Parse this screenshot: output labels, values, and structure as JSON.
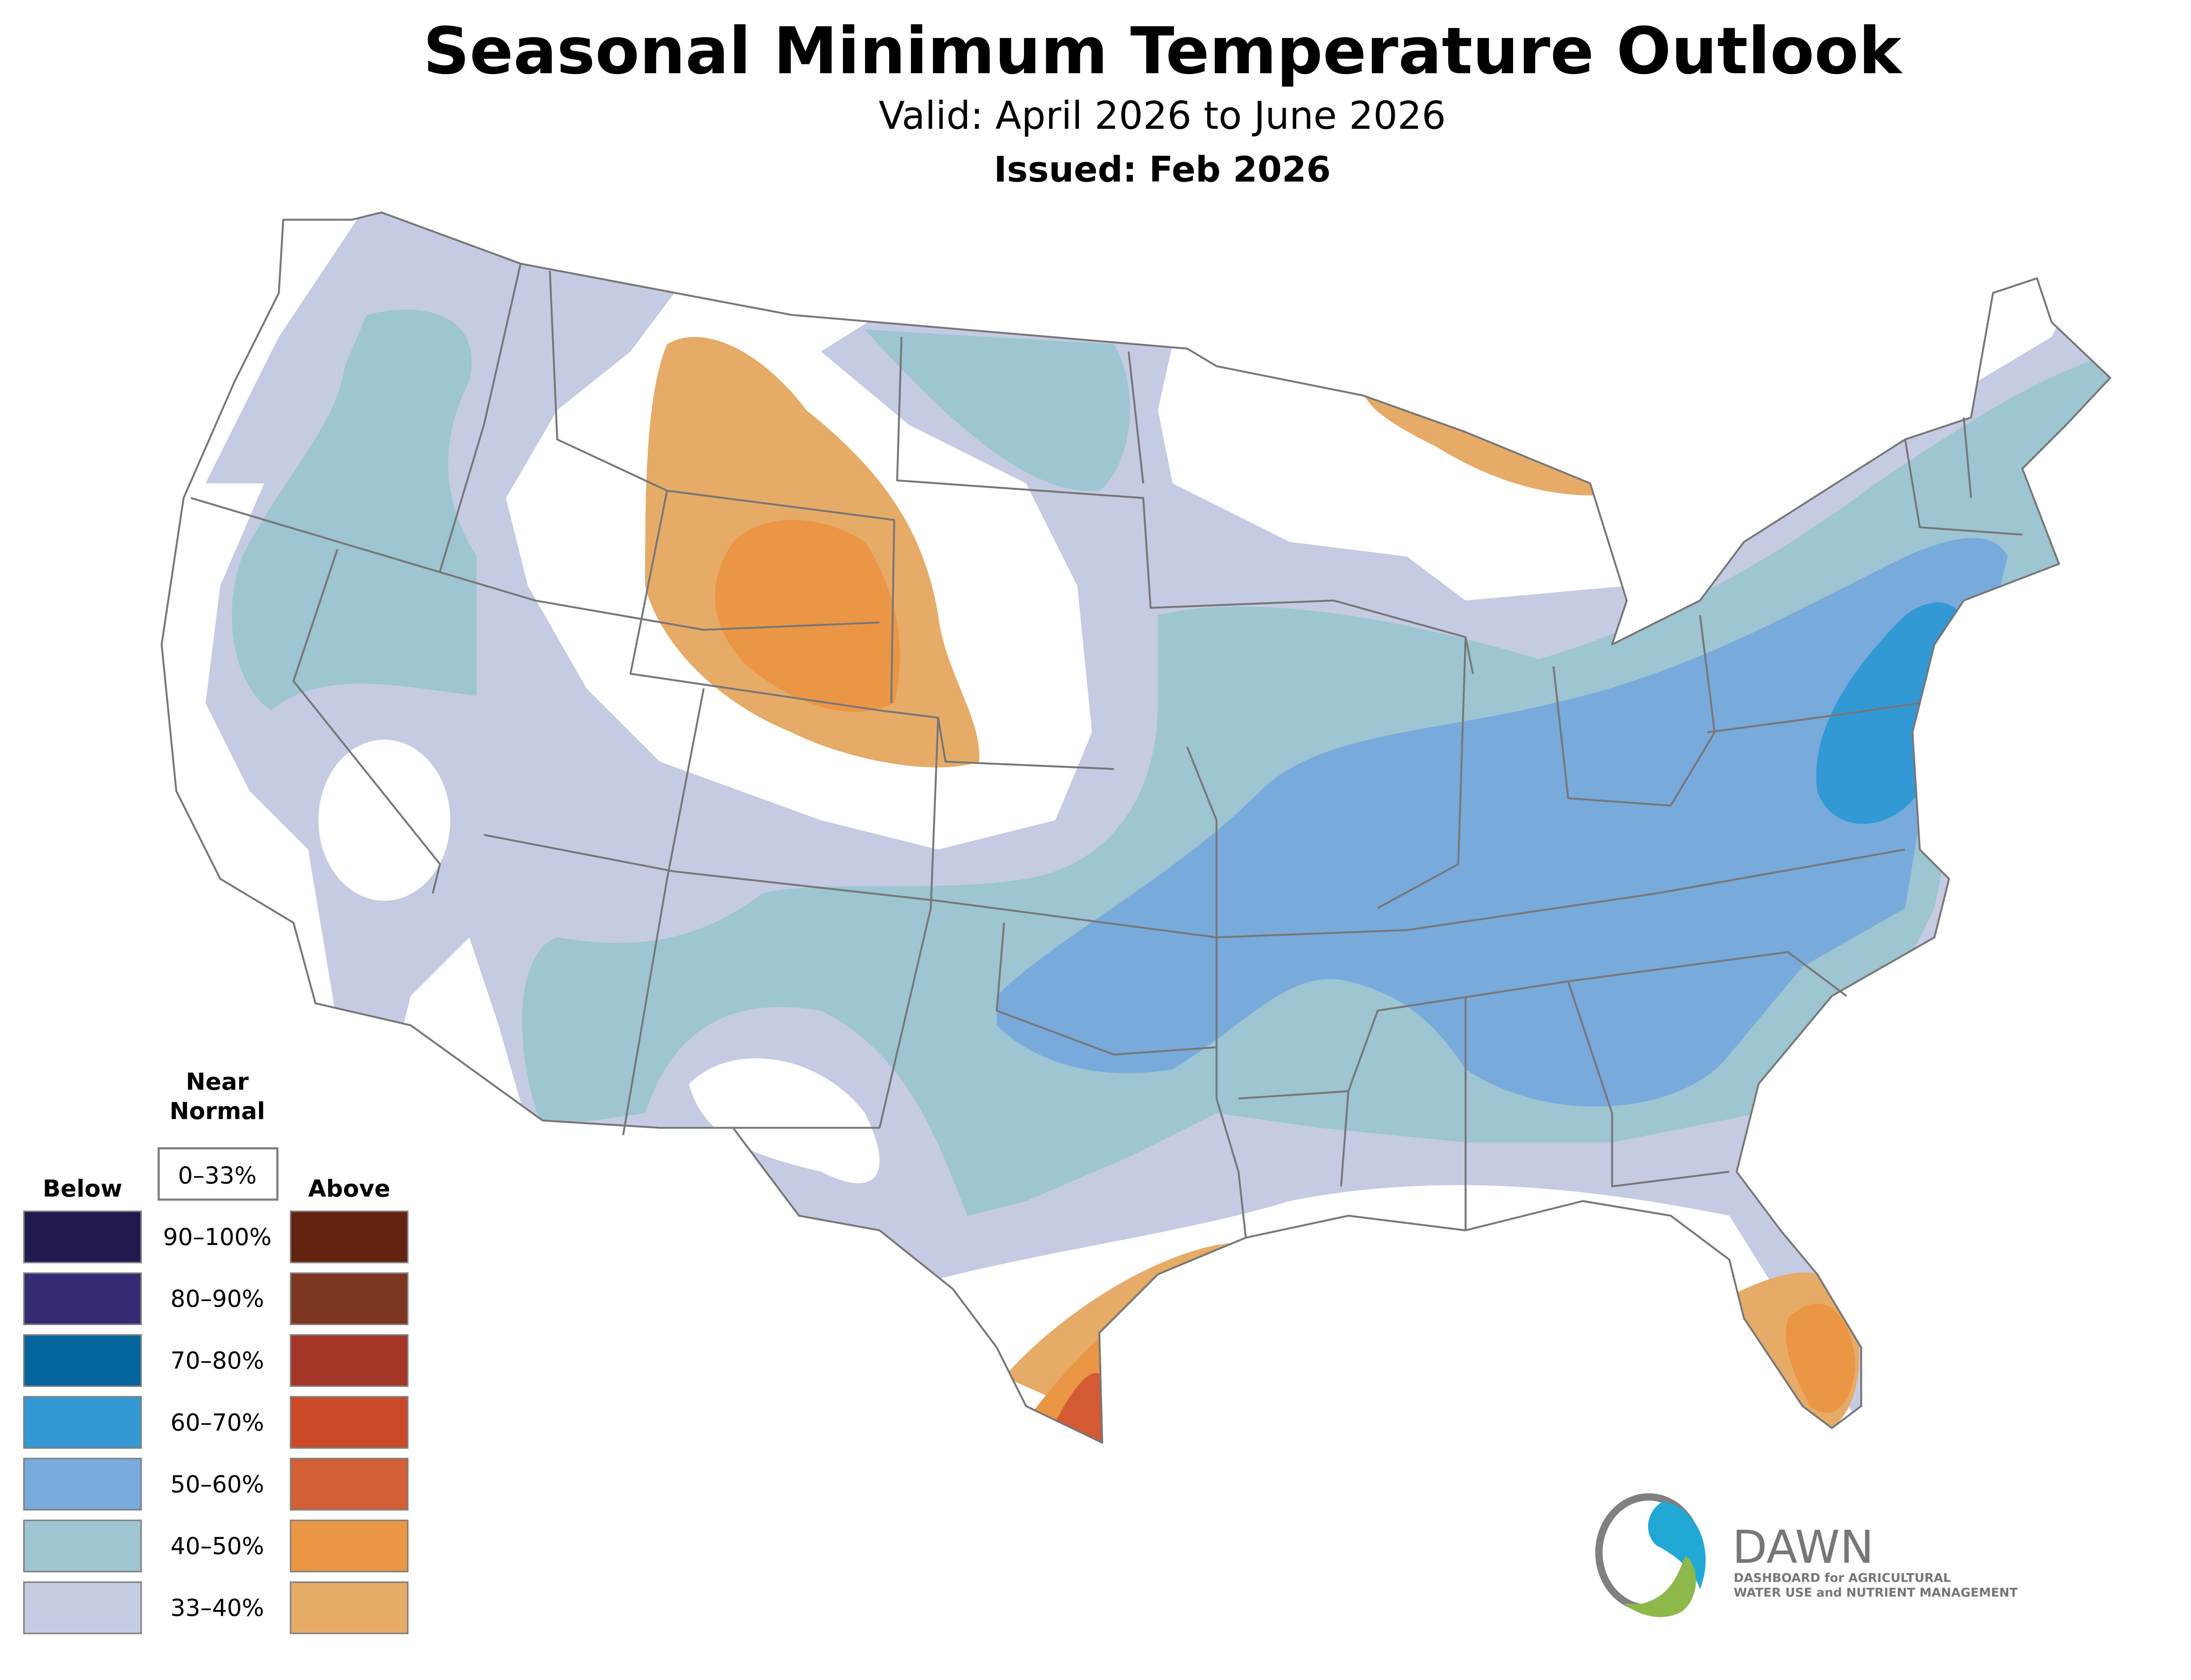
{
  "header": {
    "title": "Seasonal Minimum Temperature Outlook",
    "valid": "Valid: April 2026 to June 2026",
    "issued": "Issued: Feb 2026"
  },
  "legend": {
    "below_label": "Below",
    "above_label": "Above",
    "near_normal_line1": "Near",
    "near_normal_line2": "Normal",
    "near_normal_range": "0–33%",
    "rows": [
      {
        "range": "90–100%",
        "below_color": "#1f1b4f",
        "above_color": "#622310"
      },
      {
        "range": "80–90%",
        "below_color": "#332c73",
        "above_color": "#7c351e"
      },
      {
        "range": "70–80%",
        "below_color": "#02659c",
        "above_color": "#a53526"
      },
      {
        "range": "60–70%",
        "below_color": "#3399d5",
        "above_color": "#cc4a28"
      },
      {
        "range": "50–60%",
        "below_color": "#78aadc",
        "above_color": "#d35f34"
      },
      {
        "range": "40–50%",
        "below_color": "#9dc5d2",
        "above_color": "#eb9645"
      },
      {
        "range": "33–40%",
        "below_color": "#c5cbe3",
        "above_color": "#e7ab68"
      }
    ]
  },
  "logo": {
    "name": "DAWN",
    "tagline_line1": "DASHBOARD for AGRICULTURAL",
    "tagline_line2": "WATER USE and NUTRIENT MANAGEMENT"
  }
}
